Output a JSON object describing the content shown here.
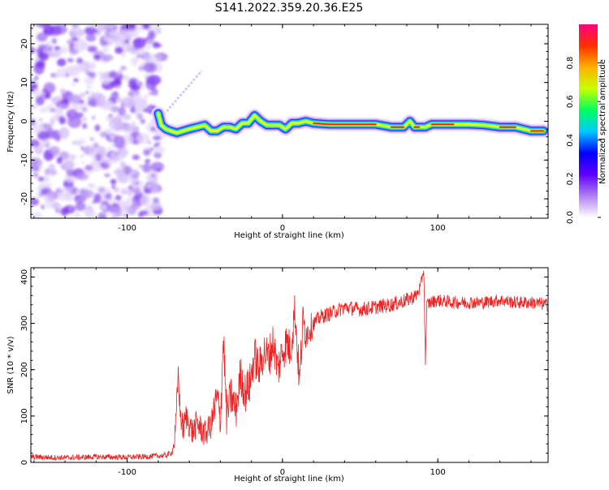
{
  "figure": {
    "title": "S141.2022.359.20.36.E25"
  },
  "chart_data": [
    {
      "type": "heatmap",
      "xlabel": "Height of straight line (km)",
      "ylabel": "Frequency (Hz)",
      "xlim": [
        -162,
        171
      ],
      "ylim": [
        -25,
        25
      ],
      "x_ticks": [
        -100,
        0,
        100
      ],
      "y_ticks": [
        -20,
        -10,
        0,
        10,
        20
      ],
      "noise_region_x": [
        -162,
        -80
      ],
      "ridge": {
        "x": [
          -80,
          -78,
          -75,
          -72,
          -68,
          -64,
          -60,
          -55,
          -50,
          -46,
          -42,
          -38,
          -34,
          -30,
          -26,
          -22,
          -18,
          -14,
          -10,
          -6,
          -2,
          2,
          6,
          10,
          15,
          20,
          30,
          45,
          60,
          70,
          75,
          78,
          82,
          85,
          88,
          92,
          96,
          100,
          110,
          120,
          130,
          140,
          150,
          160,
          168
        ],
        "y": [
          2,
          -1,
          -2,
          -2.5,
          -3,
          -2.5,
          -2,
          -1.5,
          -1,
          -2.5,
          -2.5,
          -1.5,
          -1.5,
          -2,
          -0.5,
          -0.5,
          1.5,
          0,
          -1,
          -1,
          -1,
          -2,
          -0.5,
          -0.5,
          0,
          -0.5,
          -0.8,
          -0.8,
          -0.8,
          -1.5,
          -1.5,
          -1.5,
          0,
          -1.5,
          -1.5,
          -1.5,
          -0.8,
          -0.8,
          -0.8,
          -0.8,
          -1,
          -1.5,
          -1.5,
          -2.5,
          -2.5
        ]
      },
      "colorbar": {
        "label": "Normalized spectral amplitude",
        "range": [
          0.0,
          1.0
        ],
        "ticks": [
          0.0,
          0.2,
          0.4,
          0.6,
          0.8
        ],
        "tick_labels": [
          "0.0",
          "0.2",
          "0.4",
          "0.6",
          "0.8"
        ],
        "stops": [
          "#ffffff",
          "#b080f0",
          "#6000ff",
          "#0000ff",
          "#00c8ff",
          "#00ff60",
          "#c8ff00",
          "#ffb000",
          "#ff3000",
          "#ff0080"
        ]
      }
    },
    {
      "type": "line",
      "xlabel": "Height of straight line (km)",
      "ylabel": "SNR (10 * v/v)",
      "xlim": [
        -162,
        171
      ],
      "ylim": [
        0,
        420
      ],
      "x_ticks": [
        -100,
        0,
        100
      ],
      "y_ticks": [
        0,
        100,
        200,
        300,
        400
      ],
      "line_color": "#ee2222",
      "series": [
        {
          "x": [
            -162,
            -140,
            -120,
            -100,
            -85,
            -75,
            -71,
            -69,
            -67,
            -66,
            -64,
            -62,
            -58,
            -55,
            -50,
            -46,
            -42,
            -40,
            -38,
            -36,
            -33,
            -30,
            -27,
            -24,
            -21,
            -18,
            -15,
            -12,
            -9,
            -6,
            -3,
            0,
            3,
            5,
            8,
            11,
            13,
            16,
            20,
            25,
            30,
            40,
            50,
            60,
            70,
            80,
            86,
            89,
            91,
            92,
            93,
            95,
            100,
            110,
            120,
            130,
            140,
            150,
            160,
            171
          ],
          "y": [
            12,
            10,
            12,
            11,
            13,
            15,
            22,
            60,
            200,
            110,
            70,
            100,
            65,
            85,
            60,
            80,
            140,
            90,
            275,
            100,
            145,
            110,
            190,
            150,
            170,
            230,
            200,
            240,
            225,
            260,
            200,
            240,
            260,
            240,
            330,
            170,
            300,
            280,
            300,
            315,
            320,
            335,
            330,
            335,
            340,
            350,
            360,
            380,
            420,
            220,
            340,
            345,
            350,
            345,
            345,
            345,
            350,
            345,
            345,
            340
          ]
        }
      ]
    }
  ]
}
